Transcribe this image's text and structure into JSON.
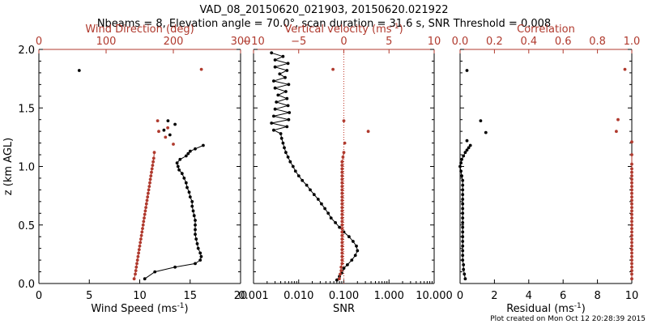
{
  "figure": {
    "title": "VAD_08_20150620_021903, 20150620.021922",
    "subtitle": "Nbeams = 8, Elevation angle = 70.0°, scan duration = 31.6 s, SNR Threshold = 0.008",
    "footer": "Plot created on Mon Oct 12 20:28:39 2015",
    "colors": {
      "primary": "#000000",
      "secondary": "#b03a2e",
      "zero_line": "#c0392b"
    }
  },
  "chart_data": [
    {
      "type": "scatter",
      "panel": "wind",
      "ylabel": "z (km AGL)",
      "ylim": [
        0,
        2
      ],
      "yticks": [
        "0.0",
        "0.5",
        "1.0",
        "1.5",
        "2.0"
      ],
      "bottom_axis": {
        "label": "Wind Speed (ms",
        "unit_sup": "-1",
        "unit_close": ")",
        "range": [
          0,
          20
        ],
        "ticks": [
          "0",
          "5",
          "10",
          "15",
          "20"
        ]
      },
      "top_axis": {
        "label": "Wind Direction (deg)",
        "range": [
          0,
          360
        ],
        "ticks": [
          "0",
          "100",
          "200",
          "300"
        ]
      },
      "series": [
        {
          "axis": "bottom",
          "color": "#000000",
          "connected": true,
          "x": [
            10.5,
            11.5,
            13.5,
            15.5,
            16.0,
            16.1,
            16.0,
            15.8,
            15.7,
            15.6,
            15.5,
            15.5,
            15.5,
            15.5,
            15.4,
            15.3,
            15.2,
            15.2,
            15.0,
            14.9,
            14.7,
            14.6,
            14.4,
            14.2,
            13.9,
            13.8,
            13.7,
            14.0,
            14.6,
            14.8,
            15.0,
            15.5,
            16.3
          ],
          "y": [
            0.04,
            0.1,
            0.14,
            0.17,
            0.2,
            0.23,
            0.26,
            0.3,
            0.34,
            0.38,
            0.42,
            0.46,
            0.5,
            0.54,
            0.58,
            0.62,
            0.66,
            0.7,
            0.74,
            0.78,
            0.82,
            0.86,
            0.9,
            0.94,
            0.97,
            1.0,
            1.03,
            1.06,
            1.09,
            1.11,
            1.13,
            1.15,
            1.18
          ]
        },
        {
          "axis": "bottom",
          "color": "#000000",
          "connected": false,
          "x": [
            4.0,
            12.8,
            12.4,
            13.5,
            13.0
          ],
          "y": [
            1.82,
            1.39,
            1.31,
            1.36,
            1.27
          ]
        },
        {
          "axis": "top",
          "color": "#b03a2e",
          "connected": true,
          "x": [
            170,
            172,
            173,
            174,
            175,
            176,
            177,
            178,
            179,
            180,
            181,
            182,
            183,
            184,
            185,
            186,
            187,
            188,
            189,
            190,
            191,
            192,
            193,
            194,
            195,
            196,
            197,
            198,
            199,
            200,
            201,
            202,
            203,
            204,
            205,
            206
          ],
          "y": [
            0.04,
            0.08,
            0.11,
            0.14,
            0.17,
            0.2,
            0.23,
            0.26,
            0.29,
            0.32,
            0.35,
            0.38,
            0.41,
            0.44,
            0.47,
            0.5,
            0.53,
            0.56,
            0.59,
            0.62,
            0.65,
            0.68,
            0.71,
            0.74,
            0.77,
            0.8,
            0.83,
            0.86,
            0.89,
            0.92,
            0.95,
            0.98,
            1.01,
            1.04,
            1.07,
            1.12
          ]
        },
        {
          "axis": "top",
          "color": "#b03a2e",
          "connected": false,
          "x": [
            290,
            212,
            214,
            230,
            226,
            240
          ],
          "y": [
            1.83,
            1.39,
            1.3,
            1.33,
            1.25,
            1.19
          ]
        }
      ]
    },
    {
      "type": "scatter",
      "panel": "snr",
      "ylim": [
        0,
        2
      ],
      "bottom_axis": {
        "label": "SNR",
        "scale": "log",
        "range": [
          0.001,
          10
        ],
        "ticks": [
          "0.001",
          "0.010",
          "0.100",
          "1.000",
          "10.000"
        ]
      },
      "top_axis": {
        "label": "Vertical velocity (ms",
        "unit_sup": "-1",
        "unit_close": ")",
        "range": [
          -10,
          10
        ],
        "ticks": [
          "−10",
          "−5",
          "0",
          "5",
          "10"
        ]
      },
      "series": [
        {
          "axis": "bottom",
          "color": "#000000",
          "connected": true,
          "x": [
            0.07,
            0.08,
            0.09,
            0.1,
            0.12,
            0.15,
            0.18,
            0.2,
            0.19,
            0.16,
            0.13,
            0.1,
            0.08,
            0.065,
            0.052,
            0.045,
            0.038,
            0.032,
            0.027,
            0.022,
            0.018,
            0.015,
            0.012,
            0.01,
            0.0085,
            0.0075,
            0.0065,
            0.0058,
            0.0052,
            0.0048,
            0.0045,
            0.0042,
            0.004,
            0.0028,
            0.0055,
            0.0025,
            0.006,
            0.0028,
            0.0062,
            0.003,
            0.0058,
            0.0032,
            0.0055,
            0.0035,
            0.0052,
            0.003,
            0.006,
            0.0028,
            0.005,
            0.0038,
            0.0055,
            0.003,
            0.0058,
            0.003,
            0.0045,
            0.0025
          ],
          "y": [
            0.03,
            0.06,
            0.09,
            0.13,
            0.16,
            0.2,
            0.24,
            0.28,
            0.32,
            0.36,
            0.4,
            0.44,
            0.48,
            0.52,
            0.56,
            0.6,
            0.64,
            0.68,
            0.72,
            0.76,
            0.8,
            0.84,
            0.88,
            0.92,
            0.96,
            1.0,
            1.04,
            1.08,
            1.12,
            1.16,
            1.2,
            1.24,
            1.28,
            1.31,
            1.34,
            1.37,
            1.4,
            1.43,
            1.46,
            1.49,
            1.52,
            1.55,
            1.58,
            1.61,
            1.64,
            1.67,
            1.7,
            1.73,
            1.76,
            1.79,
            1.82,
            1.85,
            1.88,
            1.91,
            1.94,
            1.97
          ]
        },
        {
          "axis": "top",
          "color": "#b03a2e",
          "connected": true,
          "x": [
            -0.5,
            -0.4,
            -0.3,
            -0.3,
            -0.2,
            -0.2,
            -0.2,
            -0.2,
            -0.2,
            -0.2,
            -0.2,
            -0.2,
            -0.2,
            -0.2,
            -0.2,
            -0.2,
            -0.2,
            -0.2,
            -0.2,
            -0.2,
            -0.2,
            -0.2,
            -0.2,
            -0.2,
            -0.2,
            -0.2,
            -0.2,
            -0.2,
            -0.2,
            -0.2,
            -0.2,
            -0.2,
            -0.2,
            -0.2,
            -0.1,
            0.0
          ],
          "y": [
            0.04,
            0.08,
            0.11,
            0.14,
            0.17,
            0.2,
            0.23,
            0.26,
            0.29,
            0.32,
            0.35,
            0.38,
            0.41,
            0.44,
            0.47,
            0.5,
            0.53,
            0.56,
            0.59,
            0.62,
            0.65,
            0.68,
            0.71,
            0.74,
            0.77,
            0.8,
            0.83,
            0.86,
            0.89,
            0.92,
            0.95,
            0.98,
            1.01,
            1.04,
            1.08,
            1.12
          ]
        },
        {
          "axis": "top",
          "color": "#b03a2e",
          "connected": false,
          "x": [
            -1.2,
            0.0,
            2.7,
            0.1
          ],
          "y": [
            1.83,
            1.39,
            1.3,
            1.2
          ]
        }
      ]
    },
    {
      "type": "scatter",
      "panel": "residual",
      "ylim": [
        0,
        2
      ],
      "bottom_axis": {
        "label": "Residual (ms",
        "unit_sup": "-1",
        "unit_close": ")",
        "range": [
          0,
          10
        ],
        "ticks": [
          "0",
          "2",
          "4",
          "6",
          "8",
          "10"
        ]
      },
      "top_axis": {
        "label": "Correlation",
        "range": [
          0,
          1
        ],
        "ticks": [
          "0.0",
          "0.2",
          "0.4",
          "0.6",
          "0.8",
          "1.0"
        ]
      },
      "series": [
        {
          "axis": "bottom",
          "color": "#000000",
          "connected": true,
          "x": [
            0.3,
            0.25,
            0.2,
            0.2,
            0.15,
            0.15,
            0.15,
            0.15,
            0.15,
            0.15,
            0.15,
            0.15,
            0.15,
            0.15,
            0.15,
            0.15,
            0.15,
            0.15,
            0.15,
            0.15,
            0.15,
            0.15,
            0.1,
            0.05,
            0.0,
            0.05,
            0.1,
            0.2,
            0.3,
            0.4,
            0.5,
            0.6
          ],
          "y": [
            0.04,
            0.08,
            0.12,
            0.16,
            0.2,
            0.24,
            0.28,
            0.32,
            0.36,
            0.4,
            0.44,
            0.48,
            0.52,
            0.56,
            0.6,
            0.64,
            0.68,
            0.72,
            0.76,
            0.8,
            0.84,
            0.88,
            0.92,
            0.96,
            1.0,
            1.03,
            1.06,
            1.09,
            1.12,
            1.14,
            1.16,
            1.18
          ]
        },
        {
          "axis": "bottom",
          "color": "#000000",
          "connected": false,
          "x": [
            0.4,
            1.2,
            1.5,
            0.4
          ],
          "y": [
            1.82,
            1.39,
            1.29,
            1.22
          ]
        },
        {
          "axis": "top",
          "color": "#b03a2e",
          "connected": true,
          "x": [
            1.0,
            1.0,
            1.0,
            1.0,
            1.0,
            1.0,
            1.0,
            1.0,
            1.0,
            1.0,
            1.0,
            1.0,
            1.0,
            1.0,
            1.0,
            1.0,
            1.0,
            1.0,
            1.0,
            1.0,
            1.0,
            1.0,
            1.0,
            1.0,
            1.0,
            1.0,
            1.0,
            1.0,
            1.0,
            1.0,
            1.0,
            1.0,
            1.0,
            1.0
          ],
          "y": [
            0.04,
            0.08,
            0.11,
            0.14,
            0.17,
            0.2,
            0.23,
            0.26,
            0.29,
            0.32,
            0.35,
            0.38,
            0.41,
            0.44,
            0.47,
            0.5,
            0.53,
            0.56,
            0.59,
            0.62,
            0.65,
            0.68,
            0.71,
            0.74,
            0.77,
            0.8,
            0.83,
            0.86,
            0.89,
            0.92,
            0.95,
            0.98,
            1.02,
            1.1
          ]
        },
        {
          "axis": "top",
          "color": "#b03a2e",
          "connected": false,
          "x": [
            0.96,
            0.92,
            0.91,
            1.0
          ],
          "y": [
            1.83,
            1.4,
            1.3,
            1.21
          ]
        }
      ]
    }
  ]
}
